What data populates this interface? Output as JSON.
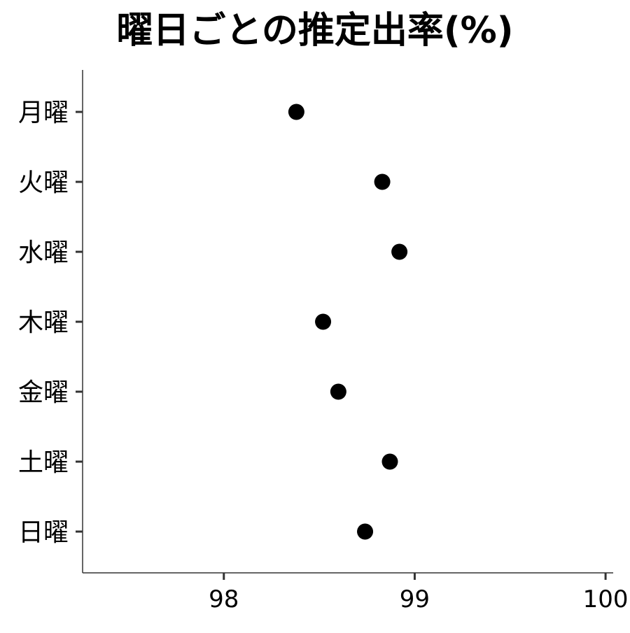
{
  "chart_data": {
    "type": "scatter",
    "title": "曜日ごとの推定出率(%)",
    "xlabel": "",
    "ylabel": "",
    "xlim": [
      97.26,
      100.04
    ],
    "xticks": [
      98,
      99,
      100
    ],
    "xtick_labels": [
      "98",
      "99",
      "100"
    ],
    "categories": [
      "月曜",
      "火曜",
      "水曜",
      "木曜",
      "金曜",
      "土曜",
      "日曜"
    ],
    "values": [
      98.38,
      98.83,
      98.92,
      98.52,
      98.6,
      98.87,
      98.74
    ],
    "grid": false,
    "legend": "none",
    "colors": {
      "point": "#000000",
      "axis": "#333333"
    }
  }
}
